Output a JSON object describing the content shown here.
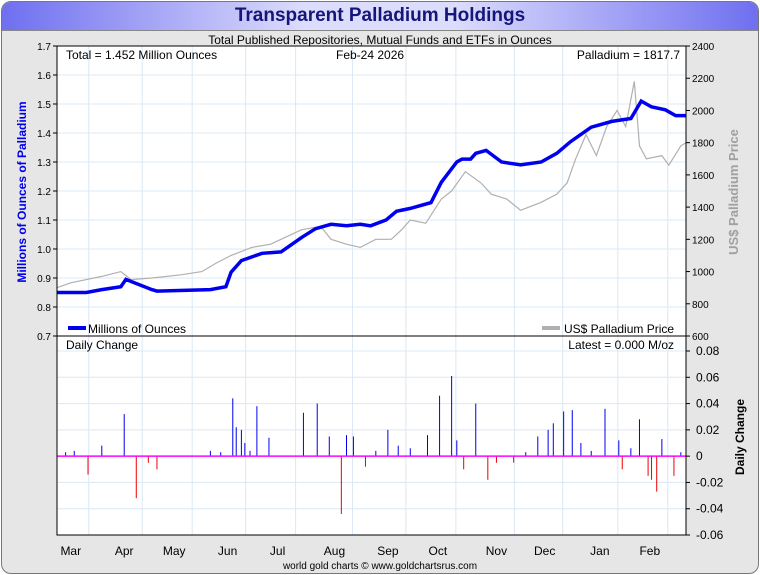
{
  "title": "Transparent Palladium Holdings",
  "subtitle": "Total Published Repositories, Mutual Funds and ETFs in Ounces",
  "footer": "world gold charts © www.goldchartsrus.com",
  "info": {
    "total": "Total = 1.452 Million Ounces",
    "date": "Feb-24  2026",
    "price": "Palladium = 1817.7",
    "daily_title": "Daily Change",
    "latest": "Latest = 0.000 M/oz"
  },
  "legend": {
    "holdings": "Millions of Ounces",
    "price": "US$ Palladium Price"
  },
  "colors": {
    "holdings": "#0000ee",
    "price": "#b0b0b0",
    "up": "#0000ee",
    "down": "#ee0000",
    "zero": "#ff00ff",
    "grid": "#dbe8f5"
  },
  "chart_data": [
    {
      "type": "line",
      "title": "Transparent Palladium Holdings",
      "ylabel": "Millions of Ounces of Palladium",
      "y2label": "US$ Palladium Price",
      "ylim": [
        0.7,
        1.7
      ],
      "y2lim": [
        600,
        2400
      ],
      "yticks": [
        "0.7",
        "0.8",
        "0.9",
        "1.0",
        "1.1",
        "1.2",
        "1.3",
        "1.4",
        "1.5",
        "1.6",
        "1.7"
      ],
      "y2ticks": [
        "600",
        "800",
        "1000",
        "1200",
        "1400",
        "1600",
        "1800",
        "2000",
        "2200",
        "2400"
      ],
      "xlim": [
        0,
        365
      ],
      "x_unit": "days since Feb-24 2025",
      "months": [
        {
          "label": "Mar",
          "day": 8
        },
        {
          "label": "Apr",
          "day": 39
        },
        {
          "label": "May",
          "day": 68
        },
        {
          "label": "Jun",
          "day": 99
        },
        {
          "label": "Jul",
          "day": 128
        },
        {
          "label": "Aug",
          "day": 161
        },
        {
          "label": "Sep",
          "day": 192
        },
        {
          "label": "Oct",
          "day": 221
        },
        {
          "label": "Nov",
          "day": 255
        },
        {
          "label": "Dec",
          "day": 283
        },
        {
          "label": "Jan",
          "day": 315
        },
        {
          "label": "Feb",
          "day": 344
        }
      ],
      "series": [
        {
          "name": "Millions of Ounces",
          "axis": "left",
          "points": [
            [
              0,
              0.85
            ],
            [
              17,
              0.85
            ],
            [
              26,
              0.86
            ],
            [
              37,
              0.87
            ],
            [
              40,
              0.895
            ],
            [
              55,
              0.86
            ],
            [
              58,
              0.855
            ],
            [
              89,
              0.86
            ],
            [
              98,
              0.87
            ],
            [
              101,
              0.92
            ],
            [
              107,
              0.96
            ],
            [
              119,
              0.985
            ],
            [
              130,
              0.99
            ],
            [
              142,
              1.04
            ],
            [
              150,
              1.07
            ],
            [
              159,
              1.085
            ],
            [
              168,
              1.08
            ],
            [
              176,
              1.085
            ],
            [
              182,
              1.08
            ],
            [
              191,
              1.1
            ],
            [
              197,
              1.13
            ],
            [
              205,
              1.14
            ],
            [
              217,
              1.16
            ],
            [
              223,
              1.23
            ],
            [
              232,
              1.3
            ],
            [
              235,
              1.31
            ],
            [
              240,
              1.31
            ],
            [
              243,
              1.33
            ],
            [
              249,
              1.34
            ],
            [
              258,
              1.3
            ],
            [
              269,
              1.29
            ],
            [
              281,
              1.3
            ],
            [
              290,
              1.33
            ],
            [
              298,
              1.37
            ],
            [
              310,
              1.42
            ],
            [
              322,
              1.44
            ],
            [
              333,
              1.45
            ],
            [
              339,
              1.51
            ],
            [
              345,
              1.49
            ],
            [
              353,
              1.48
            ],
            [
              359,
              1.46
            ],
            [
              365,
              1.46
            ]
          ]
        },
        {
          "name": "US$ Palladium Price",
          "axis": "right",
          "points": [
            [
              0,
              900
            ],
            [
              8,
              930
            ],
            [
              26,
              970
            ],
            [
              37,
              1000
            ],
            [
              43,
              950
            ],
            [
              55,
              960
            ],
            [
              72,
              980
            ],
            [
              84,
              1000
            ],
            [
              92,
              1050
            ],
            [
              101,
              1100
            ],
            [
              113,
              1150
            ],
            [
              124,
              1170
            ],
            [
              130,
              1200
            ],
            [
              142,
              1260
            ],
            [
              153,
              1280
            ],
            [
              159,
              1200
            ],
            [
              168,
              1170
            ],
            [
              176,
              1150
            ],
            [
              185,
              1200
            ],
            [
              194,
              1200
            ],
            [
              200,
              1260
            ],
            [
              205,
              1320
            ],
            [
              214,
              1300
            ],
            [
              223,
              1450
            ],
            [
              229,
              1500
            ],
            [
              237,
              1620
            ],
            [
              246,
              1550
            ],
            [
              252,
              1480
            ],
            [
              261,
              1450
            ],
            [
              269,
              1380
            ],
            [
              281,
              1430
            ],
            [
              290,
              1480
            ],
            [
              296,
              1550
            ],
            [
              301,
              1700
            ],
            [
              307,
              1850
            ],
            [
              313,
              1720
            ],
            [
              319,
              1900
            ],
            [
              325,
              2000
            ],
            [
              330,
              1900
            ],
            [
              335,
              2180
            ],
            [
              338,
              1780
            ],
            [
              342,
              1700
            ],
            [
              351,
              1720
            ],
            [
              355,
              1660
            ],
            [
              362,
              1780
            ],
            [
              365,
              1800
            ]
          ]
        }
      ]
    },
    {
      "type": "bar",
      "title": "Daily Change",
      "ylabel": "Daily Change",
      "ylim": [
        -0.06,
        0.08
      ],
      "yticks": [
        "-0.06",
        "-0.04",
        "-0.02",
        "0",
        "0.02",
        "0.04",
        "0.06",
        "0.08"
      ],
      "values": [
        [
          5,
          0.003
        ],
        [
          10,
          0.004
        ],
        [
          18,
          -0.014
        ],
        [
          26,
          0.008
        ],
        [
          39,
          0.032
        ],
        [
          46,
          -0.032
        ],
        [
          53,
          -0.005
        ],
        [
          58,
          -0.01
        ],
        [
          89,
          0.004
        ],
        [
          95,
          0.003
        ],
        [
          102,
          0.044
        ],
        [
          104,
          0.022
        ],
        [
          107,
          0.02
        ],
        [
          109,
          0.01
        ],
        [
          112,
          0.004
        ],
        [
          116,
          0.038
        ],
        [
          123,
          0.014
        ],
        [
          143,
          0.033
        ],
        [
          151,
          0.04
        ],
        [
          158,
          0.015
        ],
        [
          165,
          -0.044
        ],
        [
          168,
          0.016
        ],
        [
          172,
          0.015
        ],
        [
          179,
          -0.008
        ],
        [
          185,
          0.004
        ],
        [
          192,
          0.02
        ],
        [
          198,
          0.008
        ],
        [
          205,
          0.006
        ],
        [
          215,
          0.016
        ],
        [
          222,
          0.046
        ],
        [
          229,
          0.061
        ],
        [
          232,
          0.012
        ],
        [
          236,
          -0.01
        ],
        [
          243,
          0.04
        ],
        [
          250,
          -0.018
        ],
        [
          255,
          -0.005
        ],
        [
          265,
          -0.005
        ],
        [
          272,
          0.003
        ],
        [
          279,
          0.015
        ],
        [
          285,
          0.02
        ],
        [
          288,
          0.025
        ],
        [
          294,
          0.034
        ],
        [
          299,
          0.035
        ],
        [
          304,
          0.01
        ],
        [
          310,
          0.004
        ],
        [
          318,
          0.036
        ],
        [
          326,
          0.012
        ],
        [
          328,
          -0.01
        ],
        [
          333,
          0.006
        ],
        [
          338,
          0.028
        ],
        [
          343,
          -0.015
        ],
        [
          345,
          -0.018
        ],
        [
          348,
          -0.027
        ],
        [
          351,
          0.013
        ],
        [
          358,
          -0.015
        ],
        [
          362,
          0.003
        ]
      ]
    }
  ]
}
